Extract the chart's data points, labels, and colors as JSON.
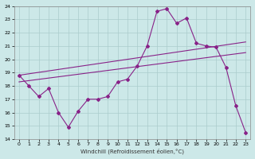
{
  "xlabel": "Windchill (Refroidissement éolien,°C)",
  "background_color": "#cce8e8",
  "line_color": "#882288",
  "grid_color": "#aacccc",
  "xlim": [
    -0.5,
    23.5
  ],
  "ylim": [
    14,
    24
  ],
  "yticks": [
    14,
    15,
    16,
    17,
    18,
    19,
    20,
    21,
    22,
    23,
    24
  ],
  "xticks": [
    0,
    1,
    2,
    3,
    4,
    5,
    6,
    7,
    8,
    9,
    10,
    11,
    12,
    13,
    14,
    15,
    16,
    17,
    18,
    19,
    20,
    21,
    22,
    23
  ],
  "line1_x": [
    0,
    1,
    2,
    3,
    4,
    5,
    6,
    7,
    8,
    9,
    10,
    11,
    12,
    13,
    14,
    15,
    16,
    17,
    18,
    19,
    20,
    21,
    22,
    23
  ],
  "line1_y": [
    18.8,
    18.0,
    17.2,
    17.8,
    16.0,
    14.9,
    16.1,
    17.0,
    17.0,
    17.2,
    18.3,
    18.5,
    19.5,
    21.0,
    23.6,
    23.8,
    22.7,
    23.1,
    21.2,
    21.0,
    20.9,
    19.4,
    16.5,
    14.5
  ],
  "trend1_x": [
    0,
    23
  ],
  "trend1_y": [
    18.8,
    21.3
  ],
  "trend2_x": [
    0,
    23
  ],
  "trend2_y": [
    18.3,
    20.5
  ]
}
